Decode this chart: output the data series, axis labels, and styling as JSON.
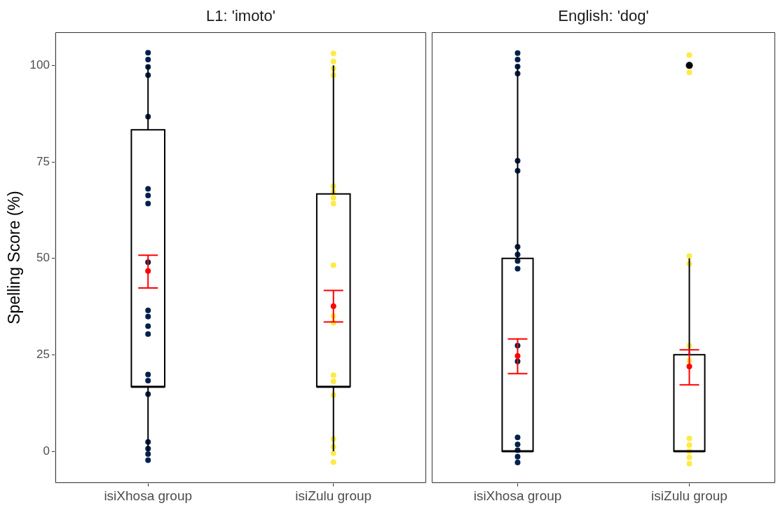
{
  "chart_data": [
    {
      "type": "box",
      "title": "L1: 'imoto'",
      "ylabel": "Spelling Score (%)",
      "categories": [
        "isiXhosa group",
        "isiZulu group"
      ],
      "ylim": [
        -8.2,
        108.6
      ],
      "yticks": [
        0,
        25,
        50,
        75,
        100
      ],
      "grid": false,
      "boxes": [
        {
          "low": 0,
          "q1": 16.7,
          "median": 16.7,
          "q3": 83.3,
          "high": 100
        },
        {
          "low": 0,
          "q1": 16.7,
          "median": 16.7,
          "q3": 66.7,
          "high": 100
        }
      ],
      "series": [
        {
          "type": "scatter",
          "color": "#00204d",
          "x": [
            "isiXhosa group",
            "isiXhosa group",
            "isiXhosa group",
            "isiXhosa group",
            "isiXhosa group",
            "isiXhosa group",
            "isiXhosa group",
            "isiXhosa group",
            "isiXhosa group",
            "isiXhosa group",
            "isiXhosa group",
            "isiXhosa group",
            "isiXhosa group",
            "isiXhosa group",
            "isiXhosa group",
            "isiXhosa group",
            "isiXhosa group",
            "isiXhosa group",
            "isiXhosa group",
            "isiXhosa group"
          ],
          "values": [
            103.3,
            101.5,
            99.6,
            97.5,
            86.7,
            68,
            66.3,
            64.2,
            49,
            36.5,
            34.9,
            32.4,
            30.4,
            19.9,
            18.3,
            14.8,
            2.4,
            0.7,
            -0.7,
            -2.3
          ]
        },
        {
          "type": "scatter",
          "color": "#ffea46",
          "x": [
            "isiZulu group",
            "isiZulu group",
            "isiZulu group",
            "isiZulu group",
            "isiZulu group",
            "isiZulu group",
            "isiZulu group",
            "isiZulu group",
            "isiZulu group",
            "isiZulu group",
            "isiZulu group",
            "isiZulu group",
            "isiZulu group",
            "isiZulu group",
            "isiZulu group",
            "isiZulu group",
            "isiZulu group",
            "isiZulu group"
          ],
          "values": [
            103.1,
            101,
            99.2,
            97.5,
            68.7,
            67.2,
            65.7,
            64.2,
            48.2,
            35,
            33.3,
            19.7,
            18.1,
            14.6,
            3.2,
            1.2,
            -0.5,
            -2.8
          ]
        },
        {
          "type": "scatter",
          "color": "#ff0000",
          "x": [
            "isiXhosa group",
            "isiZulu group"
          ],
          "values": [
            46.7,
            37.6
          ],
          "errors": [
            [
              42.3,
              50.8
            ],
            [
              33.5,
              41.7
            ]
          ]
        }
      ]
    },
    {
      "type": "box",
      "title": "English: 'dog'",
      "categories": [
        "isiXhosa group",
        "isiZulu group"
      ],
      "ylim": [
        -8.2,
        108.6
      ],
      "yticks": [
        0,
        25,
        50,
        75,
        100
      ],
      "grid": false,
      "tick_labels": "x",
      "boxes": [
        {
          "low": 0,
          "q1": 0,
          "median": 0,
          "q3": 50,
          "high": 100
        },
        {
          "low": 0,
          "q1": 0,
          "median": 0,
          "q3": 25,
          "high": 50,
          "outliers": [
            100
          ]
        }
      ],
      "series": [
        {
          "type": "scatter",
          "color": "#00204d",
          "x": [
            "isiXhosa group",
            "isiXhosa group",
            "isiXhosa group",
            "isiXhosa group",
            "isiXhosa group",
            "isiXhosa group",
            "isiXhosa group",
            "isiXhosa group",
            "isiXhosa group",
            "isiXhosa group",
            "isiXhosa group",
            "isiXhosa group",
            "isiXhosa group",
            "isiXhosa group",
            "isiXhosa group",
            "isiXhosa group",
            "isiXhosa group"
          ],
          "values": [
            103.2,
            101.5,
            99.7,
            97.9,
            75.3,
            72.7,
            53,
            51,
            49.3,
            47.3,
            27.4,
            23.3,
            3.6,
            1.8,
            0.3,
            -1.4,
            -2.9
          ]
        },
        {
          "type": "scatter",
          "color": "#ffea46",
          "x": [
            "isiZulu group",
            "isiZulu group",
            "isiZulu group",
            "isiZulu group",
            "isiZulu group",
            "isiZulu group",
            "isiZulu group",
            "isiZulu group",
            "isiZulu group",
            "isiZulu group",
            "isiZulu group"
          ],
          "values": [
            102.7,
            98.2,
            50.6,
            48.6,
            27.4,
            23.5,
            3.3,
            1.6,
            0,
            -1.6,
            -3.2
          ]
        },
        {
          "type": "scatter",
          "color": "#ff0000",
          "x": [
            "isiXhosa group",
            "isiZulu group"
          ],
          "values": [
            24.7,
            22
          ],
          "errors": [
            [
              20.1,
              29.1
            ],
            [
              17.2,
              26.3
            ]
          ]
        }
      ]
    }
  ]
}
